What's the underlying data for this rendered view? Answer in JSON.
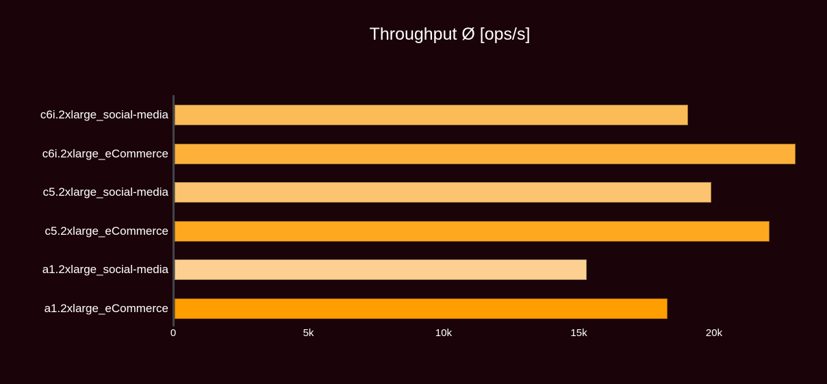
{
  "theme": {
    "background": "#1a0309",
    "text_color": "#ffffff",
    "axis_line_color": "#41464c"
  },
  "chart_data": {
    "type": "bar",
    "orientation": "horizontal",
    "title": "Throughput Ø [ops/s]",
    "categories": [
      "c6i.2xlarge_social-media",
      "c6i.2xlarge_eCommerce",
      "c5.2xlarge_social-media",
      "c5.2xlarge_eCommerce",
      "a1.2xlarge_social-media",
      "a1.2xlarge_eCommerce"
    ],
    "values": [
      18990,
      22950,
      19850,
      21990,
      15230,
      18220
    ],
    "bar_colors": [
      "#fbbb57",
      "#feb13a",
      "#fcc470",
      "#fea81f",
      "#fdd092",
      "#fe9e01"
    ],
    "x_tick_labels": [
      "0",
      "5k",
      "10k",
      "15k",
      "20k"
    ],
    "x_tick_values": [
      0,
      5000,
      10000,
      15000,
      20000
    ],
    "xlim": [
      0,
      23700
    ],
    "xlabel": "",
    "ylabel": "",
    "grid": false,
    "legend_position": "none"
  }
}
